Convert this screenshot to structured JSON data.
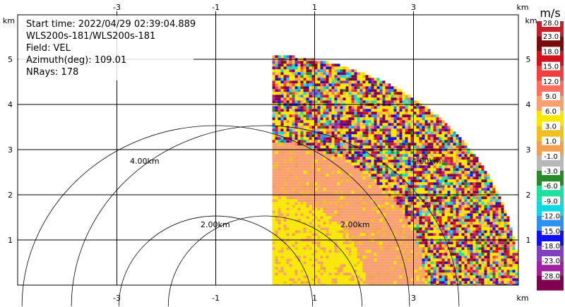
{
  "chart_data": {
    "type": "heatmap",
    "info_lines": [
      "Start time: 2022/04/29 02:39:04.889",
      "WLS200s-181/WLS200s-181",
      "Field: VEL",
      "Azimuth(deg): 109.01",
      "NRays: 178"
    ],
    "x_unit": "km",
    "y_unit": "km",
    "xlim": [
      -5,
      5
    ],
    "ylim": [
      0,
      6
    ],
    "x_ticks": [
      "-3",
      "-1",
      "1",
      "3"
    ],
    "y_ticks": [
      "1",
      "2",
      "3",
      "4",
      "5"
    ],
    "range_rings": [
      {
        "radius_km": 2,
        "label": "2.00km"
      },
      {
        "radius_km": 4,
        "label": "4.00km"
      }
    ],
    "colorbar": {
      "unit": "m/s",
      "labels": [
        "28.0",
        "23.0",
        "18.0",
        "15.0",
        "12.0",
        "9.0",
        "6.0",
        "3.0",
        "1.0",
        "-1.0",
        "-3.0",
        "-6.0",
        "-9.0",
        "-12.0",
        "-15.0",
        "-18.0",
        "-23.0",
        "-28.0"
      ],
      "colors": [
        "#c6222e",
        "#7a0c0c",
        "#d0121c",
        "#f04040",
        "#f87060",
        "#f8a070",
        "#f8e800",
        "#f0c020",
        "#f0a050",
        "#b8b8b8",
        "#2a8a2a",
        "#20e0a0",
        "#10d8e0",
        "#3090f0",
        "#1010f0",
        "#8040c0",
        "#a020a0",
        "#800050"
      ]
    },
    "sector": {
      "max_range_km": 5.12,
      "azimuth_start_deg": 0,
      "azimuth_end_deg": 90,
      "origin_km": [
        0,
        0
      ],
      "velocity_bands": [
        {
          "r_from_km": 0,
          "r_to_km": 2.0,
          "dominant_mps": 6.0
        },
        {
          "r_from_km": 2.0,
          "r_to_km": 3.2,
          "dominant_mps": 9.0
        },
        {
          "r_from_km": 3.2,
          "r_to_km": 5.12,
          "dominant_mps": null
        }
      ]
    }
  }
}
